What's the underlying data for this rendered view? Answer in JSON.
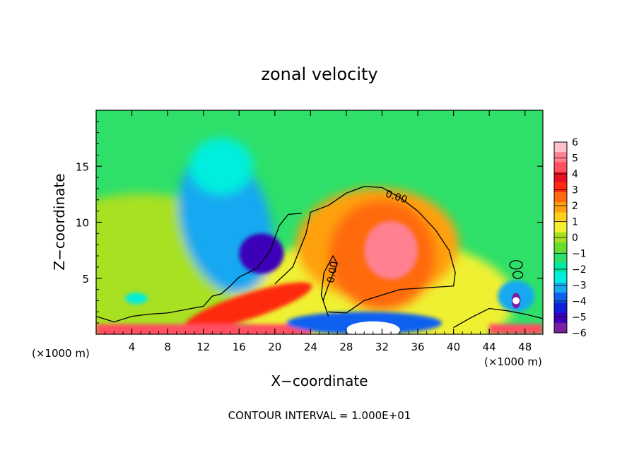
{
  "chart_data": {
    "type": "heatmap",
    "title": "zonal velocity",
    "xlabel": "X−coordinate",
    "ylabel": "Z−coordinate",
    "x_unit_left": "(×1000 m)",
    "x_unit_right": "(×1000 m)",
    "footer": "CONTOUR INTERVAL = 1.000E+01",
    "xlim": [
      0,
      50
    ],
    "ylim": [
      0,
      20
    ],
    "x_ticks": [
      4,
      8,
      12,
      16,
      20,
      24,
      28,
      32,
      36,
      40,
      44,
      48
    ],
    "y_ticks": [
      5,
      10,
      15
    ],
    "colorbar": {
      "ticks": [
        "6",
        "5",
        "4",
        "3",
        "2",
        "1",
        "0",
        "−1",
        "−2",
        "−3",
        "−4",
        "−5",
        "−6"
      ],
      "range": [
        -6,
        6
      ],
      "colors": [
        "#7a1fa0",
        "#3a00b8",
        "#1020d8",
        "#1060f0",
        "#19a8f0",
        "#00eedd",
        "#00e8a8",
        "#2ee06a",
        "#66dd30",
        "#a8e020",
        "#f0f030",
        "#ffd020",
        "#ffa010",
        "#ff6a10",
        "#ff2a10",
        "#e81020",
        "#ff5060",
        "#ff8090",
        "#ffc0c8"
      ]
    },
    "contour_labels": [
      {
        "text": "0.00",
        "x": 33.5,
        "z": 12.0
      },
      {
        "text": "0.00",
        "x": 26.8,
        "z": 5.5
      }
    ],
    "background_value": -1.3,
    "features": [
      {
        "kind": "negative_core",
        "x": 18.5,
        "z": 7.2,
        "value": -5.2
      },
      {
        "kind": "negative_region",
        "x": 14.5,
        "z": 10.0,
        "value": -3.2
      },
      {
        "kind": "positive_core",
        "x": 33.0,
        "z": 7.5,
        "value": 5.0
      },
      {
        "kind": "positive_region",
        "x": 32.0,
        "z": 7.0,
        "value": 2.5
      },
      {
        "kind": "surface_positive_band",
        "x": 8.0,
        "z": 0.5,
        "value": 4.5
      },
      {
        "kind": "low_level_jet",
        "x": 17.0,
        "z": 2.8,
        "value": 3.5
      },
      {
        "kind": "negative_spot",
        "x": 47.0,
        "z": 3.0,
        "value": -5.5
      },
      {
        "kind": "strong_negative_surface",
        "x": 31.0,
        "z": 0.5,
        "value": -6.0
      }
    ]
  }
}
